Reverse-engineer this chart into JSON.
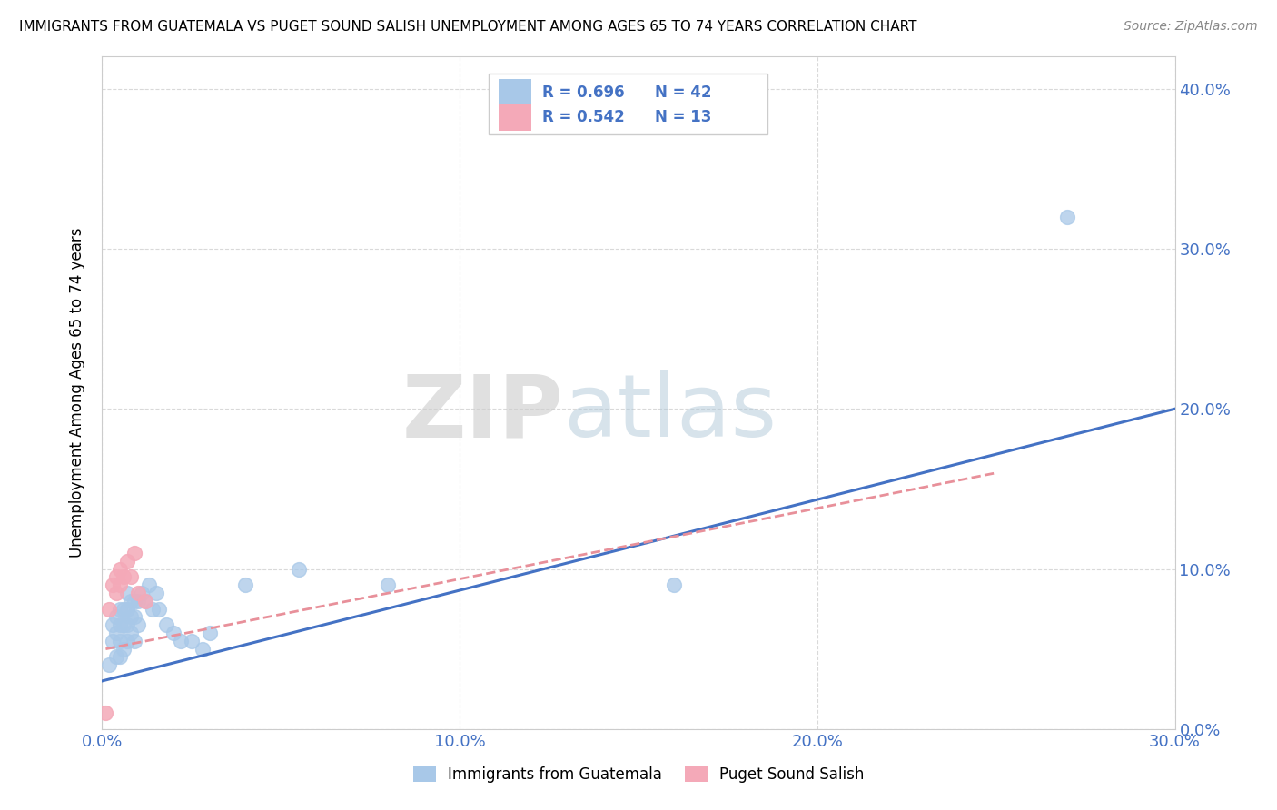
{
  "title": "IMMIGRANTS FROM GUATEMALA VS PUGET SOUND SALISH UNEMPLOYMENT AMONG AGES 65 TO 74 YEARS CORRELATION CHART",
  "source": "Source: ZipAtlas.com",
  "ylabel": "Unemployment Among Ages 65 to 74 years",
  "xlabel_blue": "Immigrants from Guatemala",
  "xlabel_pink": "Puget Sound Salish",
  "xlim": [
    0.0,
    0.3
  ],
  "ylim": [
    0.0,
    0.42
  ],
  "yticks": [
    0.0,
    0.1,
    0.2,
    0.3,
    0.4
  ],
  "xticks": [
    0.0,
    0.1,
    0.2,
    0.3
  ],
  "legend_r_blue": "R = 0.696",
  "legend_n_blue": "N = 42",
  "legend_r_pink": "R = 0.542",
  "legend_n_pink": "N = 13",
  "blue_color": "#A8C8E8",
  "pink_color": "#F4A9B8",
  "blue_line_color": "#4472C4",
  "pink_line_color": "#E8909A",
  "watermark_zip": "ZIP",
  "watermark_atlas": "atlas",
  "blue_scatter_x": [
    0.002,
    0.003,
    0.003,
    0.004,
    0.004,
    0.004,
    0.005,
    0.005,
    0.005,
    0.005,
    0.006,
    0.006,
    0.006,
    0.007,
    0.007,
    0.007,
    0.007,
    0.008,
    0.008,
    0.008,
    0.009,
    0.009,
    0.009,
    0.01,
    0.01,
    0.011,
    0.012,
    0.013,
    0.014,
    0.015,
    0.016,
    0.018,
    0.02,
    0.022,
    0.025,
    0.028,
    0.03,
    0.04,
    0.055,
    0.08,
    0.16,
    0.27
  ],
  "blue_scatter_y": [
    0.04,
    0.055,
    0.065,
    0.045,
    0.06,
    0.07,
    0.045,
    0.055,
    0.065,
    0.075,
    0.05,
    0.065,
    0.075,
    0.055,
    0.065,
    0.075,
    0.085,
    0.06,
    0.07,
    0.08,
    0.055,
    0.07,
    0.08,
    0.065,
    0.08,
    0.085,
    0.08,
    0.09,
    0.075,
    0.085,
    0.075,
    0.065,
    0.06,
    0.055,
    0.055,
    0.05,
    0.06,
    0.09,
    0.1,
    0.09,
    0.09,
    0.32
  ],
  "pink_scatter_x": [
    0.002,
    0.003,
    0.004,
    0.004,
    0.005,
    0.005,
    0.006,
    0.007,
    0.008,
    0.009,
    0.01,
    0.012,
    0.001
  ],
  "pink_scatter_y": [
    0.075,
    0.09,
    0.085,
    0.095,
    0.09,
    0.1,
    0.095,
    0.105,
    0.095,
    0.11,
    0.085,
    0.08,
    0.01
  ],
  "blue_trend_x": [
    0.0,
    0.3
  ],
  "blue_trend_y": [
    0.03,
    0.2
  ],
  "pink_trend_x": [
    0.001,
    0.25
  ],
  "pink_trend_y": [
    0.05,
    0.16
  ],
  "background_color": "#FFFFFF",
  "grid_color": "#D0D0D0"
}
